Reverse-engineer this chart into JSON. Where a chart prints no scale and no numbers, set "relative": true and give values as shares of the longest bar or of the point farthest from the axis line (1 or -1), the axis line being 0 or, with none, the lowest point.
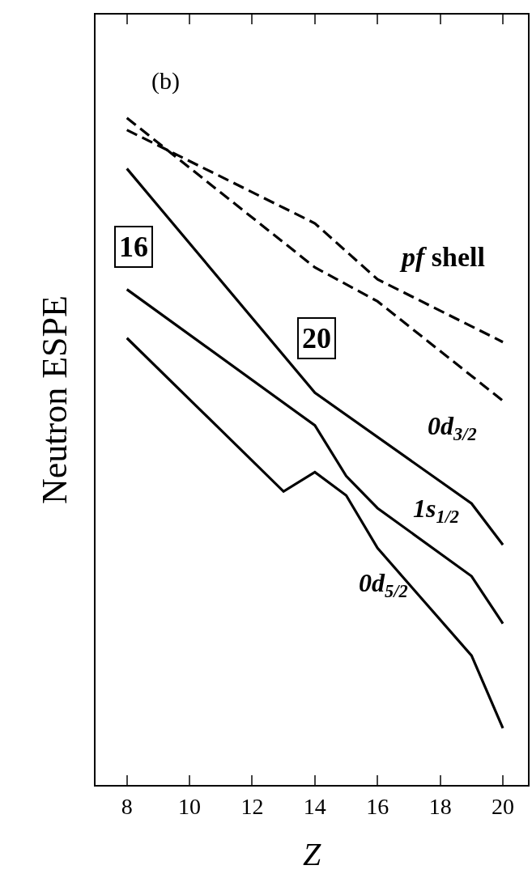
{
  "chart_data": {
    "type": "line",
    "relative": true,
    "xlabel": "Z",
    "ylabel": "Neutron ESPE",
    "xlim": [
      7,
      20.8
    ],
    "xticks": [
      8,
      10,
      12,
      14,
      16,
      18,
      20
    ],
    "series": [
      {
        "color": "#000000",
        "line_style": "dashed",
        "x": [
          8,
          14,
          16,
          20
        ],
        "values": [
          1.0,
          0.776,
          0.725,
          0.576
        ]
      },
      {
        "color": "#000000",
        "line_style": "dashed",
        "x": [
          8,
          14,
          16,
          20
        ],
        "values": [
          0.982,
          0.842,
          0.758,
          0.664
        ]
      },
      {
        "name": "0d$_{3/2}$",
        "color": "#000000",
        "line_style": "solid",
        "x": [
          8,
          14,
          19,
          20
        ],
        "values": [
          0.924,
          0.588,
          0.422,
          0.36
        ]
      },
      {
        "name": "1s$_{1/2}$",
        "color": "#000000",
        "line_style": "solid",
        "x": [
          8,
          14,
          15,
          16,
          19,
          20
        ],
        "values": [
          0.743,
          0.539,
          0.463,
          0.415,
          0.313,
          0.242
        ]
      },
      {
        "name": "0d$_{5/2}$",
        "color": "#000000",
        "line_style": "solid",
        "x": [
          8,
          13,
          14,
          15,
          16,
          19,
          20
        ],
        "values": [
          0.67,
          0.44,
          0.469,
          0.434,
          0.355,
          0.194,
          0.085
        ]
      }
    ],
    "annotations": [
      "(b)",
      "16",
      "20",
      "pf shell"
    ],
    "marker": "none"
  }
}
